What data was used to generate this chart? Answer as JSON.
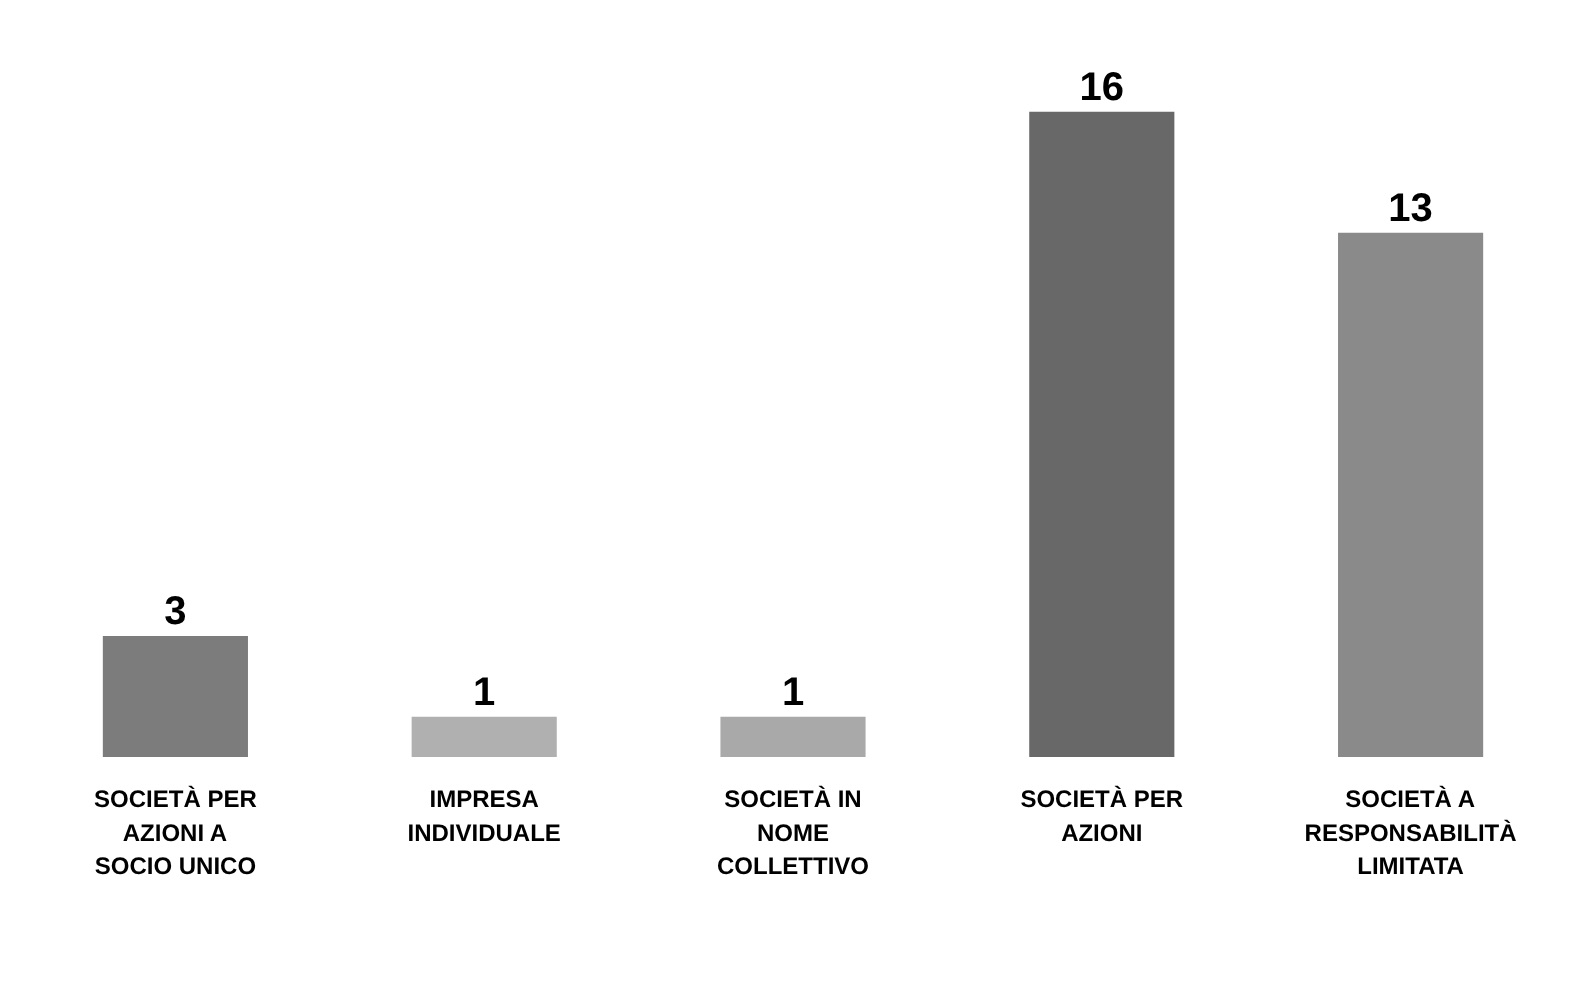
{
  "chart_data": {
    "type": "bar",
    "categories": [
      "SOCIETÀ PER AZIONI A SOCIO UNICO",
      "IMPRESA INDIVIDUALE",
      "SOCIETÀ IN NOME COLLETTIVO",
      "SOCIETÀ PER AZIONI",
      "SOCIETÀ A RESPONSABILITÀ LIMITATA"
    ],
    "values": [
      3,
      1,
      1,
      16,
      13
    ],
    "colors": [
      "#7c7c7c",
      "#b0b0b0",
      "#a9a9a9",
      "#686868",
      "#8a8a8a"
    ],
    "data_labels": true
  }
}
